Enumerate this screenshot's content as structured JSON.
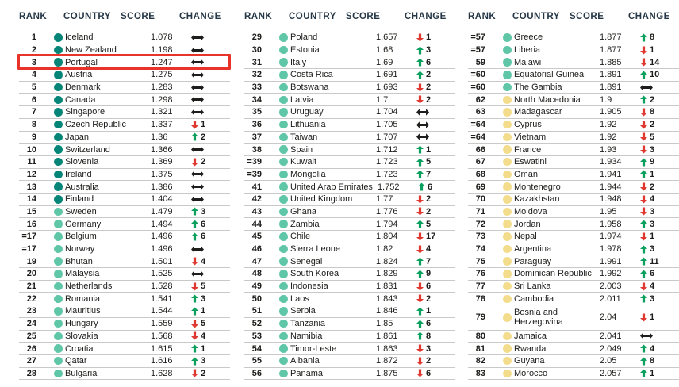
{
  "colors": {
    "header": "#253746",
    "text": "#1d1d1b",
    "separator": "#c9c9c9",
    "up": "#0ca05f",
    "down": "#de3831",
    "same": "#1d1d1b",
    "highlight": "#e8332a"
  },
  "table": {
    "headers": {
      "rank": "RANK",
      "country": "COUNTRY",
      "score": "SCORE",
      "change": "CHANGE"
    },
    "tier_colors": {
      "t1": "#048577",
      "t2": "#5fc6a7",
      "t3": "#f3dd8d"
    },
    "columns": [
      {
        "rows": [
          {
            "rank": "1",
            "country": "Iceland",
            "score": "1.078",
            "dir": "s",
            "n": "",
            "tier": "t1"
          },
          {
            "rank": "2",
            "country": "New Zealand",
            "score": "1.198",
            "dir": "s",
            "n": "",
            "tier": "t1"
          },
          {
            "rank": "3",
            "country": "Portugal",
            "score": "1.247",
            "dir": "s",
            "n": "",
            "tier": "t1",
            "highlight": true
          },
          {
            "rank": "4",
            "country": "Austria",
            "score": "1.275",
            "dir": "s",
            "n": "",
            "tier": "t1"
          },
          {
            "rank": "5",
            "country": "Denmark",
            "score": "1.283",
            "dir": "s",
            "n": "",
            "tier": "t1"
          },
          {
            "rank": "6",
            "country": "Canada",
            "score": "1.298",
            "dir": "s",
            "n": "",
            "tier": "t1"
          },
          {
            "rank": "7",
            "country": "Singapore",
            "score": "1.321",
            "dir": "s",
            "n": "",
            "tier": "t1"
          },
          {
            "rank": "8",
            "country": "Czech Republic",
            "score": "1.337",
            "dir": "d",
            "n": "1",
            "tier": "t1"
          },
          {
            "rank": "9",
            "country": "Japan",
            "score": "1.36",
            "dir": "u",
            "n": "2",
            "tier": "t1"
          },
          {
            "rank": "10",
            "country": "Switzerland",
            "score": "1.366",
            "dir": "s",
            "n": "",
            "tier": "t1"
          },
          {
            "rank": "11",
            "country": "Slovenia",
            "score": "1.369",
            "dir": "d",
            "n": "2",
            "tier": "t1"
          },
          {
            "rank": "12",
            "country": "Ireland",
            "score": "1.375",
            "dir": "s",
            "n": "",
            "tier": "t1"
          },
          {
            "rank": "13",
            "country": "Australia",
            "score": "1.386",
            "dir": "s",
            "n": "",
            "tier": "t1"
          },
          {
            "rank": "14",
            "country": "Finland",
            "score": "1.404",
            "dir": "s",
            "n": "",
            "tier": "t1"
          },
          {
            "rank": "15",
            "country": "Sweden",
            "score": "1.479",
            "dir": "u",
            "n": "3",
            "tier": "t2"
          },
          {
            "rank": "16",
            "country": "Germany",
            "score": "1.494",
            "dir": "u",
            "n": "6",
            "tier": "t2"
          },
          {
            "rank": "=17",
            "country": "Belgium",
            "score": "1.496",
            "dir": "u",
            "n": "6",
            "tier": "t2"
          },
          {
            "rank": "=17",
            "country": "Norway",
            "score": "1.496",
            "dir": "s",
            "n": "",
            "tier": "t2"
          },
          {
            "rank": "19",
            "country": "Bhutan",
            "score": "1.501",
            "dir": "d",
            "n": "4",
            "tier": "t2"
          },
          {
            "rank": "20",
            "country": "Malaysia",
            "score": "1.525",
            "dir": "s",
            "n": "",
            "tier": "t2"
          },
          {
            "rank": "21",
            "country": "Netherlands",
            "score": "1.528",
            "dir": "d",
            "n": "5",
            "tier": "t2"
          },
          {
            "rank": "22",
            "country": "Romania",
            "score": "1.541",
            "dir": "u",
            "n": "3",
            "tier": "t2"
          },
          {
            "rank": "23",
            "country": "Mauritius",
            "score": "1.544",
            "dir": "u",
            "n": "1",
            "tier": "t2"
          },
          {
            "rank": "24",
            "country": "Hungary",
            "score": "1.559",
            "dir": "d",
            "n": "5",
            "tier": "t2"
          },
          {
            "rank": "25",
            "country": "Slovakia",
            "score": "1.568",
            "dir": "d",
            "n": "4",
            "tier": "t2"
          },
          {
            "rank": "26",
            "country": "Croatia",
            "score": "1.615",
            "dir": "u",
            "n": "1",
            "tier": "t2"
          },
          {
            "rank": "27",
            "country": "Qatar",
            "score": "1.616",
            "dir": "u",
            "n": "3",
            "tier": "t2"
          },
          {
            "rank": "28",
            "country": "Bulgaria",
            "score": "1.628",
            "dir": "d",
            "n": "2",
            "tier": "t2"
          }
        ]
      },
      {
        "rows": [
          {
            "rank": "29",
            "country": "Poland",
            "score": "1.657",
            "dir": "d",
            "n": "1",
            "tier": "t2"
          },
          {
            "rank": "30",
            "country": "Estonia",
            "score": "1.68",
            "dir": "u",
            "n": "3",
            "tier": "t2"
          },
          {
            "rank": "31",
            "country": "Italy",
            "score": "1.69",
            "dir": "u",
            "n": "6",
            "tier": "t2"
          },
          {
            "rank": "32",
            "country": "Costa Rica",
            "score": "1.691",
            "dir": "u",
            "n": "2",
            "tier": "t2"
          },
          {
            "rank": "33",
            "country": "Botswana",
            "score": "1.693",
            "dir": "d",
            "n": "2",
            "tier": "t2"
          },
          {
            "rank": "34",
            "country": "Latvia",
            "score": "1.7",
            "dir": "d",
            "n": "2",
            "tier": "t2"
          },
          {
            "rank": "35",
            "country": "Uruguay",
            "score": "1.704",
            "dir": "s",
            "n": "",
            "tier": "t2"
          },
          {
            "rank": "36",
            "country": "Lithuania",
            "score": "1.705",
            "dir": "s",
            "n": "",
            "tier": "t2"
          },
          {
            "rank": "37",
            "country": "Taiwan",
            "score": "1.707",
            "dir": "s",
            "n": "",
            "tier": "t2"
          },
          {
            "rank": "38",
            "country": "Spain",
            "score": "1.712",
            "dir": "u",
            "n": "1",
            "tier": "t2"
          },
          {
            "rank": "=39",
            "country": "Kuwait",
            "score": "1.723",
            "dir": "u",
            "n": "5",
            "tier": "t2"
          },
          {
            "rank": "=39",
            "country": "Mongolia",
            "score": "1.723",
            "dir": "u",
            "n": "7",
            "tier": "t2"
          },
          {
            "rank": "41",
            "country": "United Arab Emirates",
            "score": "1.752",
            "dir": "u",
            "n": "6",
            "tier": "t2"
          },
          {
            "rank": "42",
            "country": "United Kingdom",
            "score": "1.77",
            "dir": "d",
            "n": "2",
            "tier": "t2"
          },
          {
            "rank": "43",
            "country": "Ghana",
            "score": "1.776",
            "dir": "d",
            "n": "2",
            "tier": "t2"
          },
          {
            "rank": "44",
            "country": "Zambia",
            "score": "1.794",
            "dir": "u",
            "n": "5",
            "tier": "t2"
          },
          {
            "rank": "45",
            "country": "Chile",
            "score": "1.804",
            "dir": "d",
            "n": "17",
            "tier": "t2"
          },
          {
            "rank": "46",
            "country": "Sierra Leone",
            "score": "1.82",
            "dir": "d",
            "n": "4",
            "tier": "t2"
          },
          {
            "rank": "47",
            "country": "Senegal",
            "score": "1.824",
            "dir": "u",
            "n": "7",
            "tier": "t2"
          },
          {
            "rank": "48",
            "country": "South Korea",
            "score": "1.829",
            "dir": "u",
            "n": "9",
            "tier": "t2"
          },
          {
            "rank": "49",
            "country": "Indonesia",
            "score": "1.831",
            "dir": "d",
            "n": "6",
            "tier": "t2"
          },
          {
            "rank": "50",
            "country": "Laos",
            "score": "1.843",
            "dir": "d",
            "n": "2",
            "tier": "t2"
          },
          {
            "rank": "51",
            "country": "Serbia",
            "score": "1.846",
            "dir": "u",
            "n": "1",
            "tier": "t2"
          },
          {
            "rank": "52",
            "country": "Tanzania",
            "score": "1.85",
            "dir": "u",
            "n": "6",
            "tier": "t2"
          },
          {
            "rank": "53",
            "country": "Namibia",
            "score": "1.861",
            "dir": "u",
            "n": "8",
            "tier": "t2"
          },
          {
            "rank": "54",
            "country": "Timor-Leste",
            "score": "1.863",
            "dir": "d",
            "n": "3",
            "tier": "t2"
          },
          {
            "rank": "55",
            "country": "Albania",
            "score": "1.872",
            "dir": "d",
            "n": "2",
            "tier": "t2"
          },
          {
            "rank": "56",
            "country": "Panama",
            "score": "1.875",
            "dir": "d",
            "n": "6",
            "tier": "t2"
          }
        ]
      },
      {
        "rows": [
          {
            "rank": "=57",
            "country": "Greece",
            "score": "1.877",
            "dir": "u",
            "n": "8",
            "tier": "t2"
          },
          {
            "rank": "=57",
            "country": "Liberia",
            "score": "1.877",
            "dir": "d",
            "n": "1",
            "tier": "t2"
          },
          {
            "rank": "59",
            "country": "Malawi",
            "score": "1.885",
            "dir": "d",
            "n": "14",
            "tier": "t2"
          },
          {
            "rank": "=60",
            "country": "Equatorial Guinea",
            "score": "1.891",
            "dir": "u",
            "n": "10",
            "tier": "t2"
          },
          {
            "rank": "=60",
            "country": "The Gambia",
            "score": "1.891",
            "dir": "s",
            "n": "",
            "tier": "t2"
          },
          {
            "rank": "62",
            "country": "North Macedonia",
            "score": "1.9",
            "dir": "u",
            "n": "2",
            "tier": "t3"
          },
          {
            "rank": "63",
            "country": "Madagascar",
            "score": "1.905",
            "dir": "d",
            "n": "8",
            "tier": "t3"
          },
          {
            "rank": "=64",
            "country": "Cyprus",
            "score": "1.92",
            "dir": "d",
            "n": "2",
            "tier": "t3"
          },
          {
            "rank": "=64",
            "country": "Vietnam",
            "score": "1.92",
            "dir": "d",
            "n": "5",
            "tier": "t3"
          },
          {
            "rank": "66",
            "country": "France",
            "score": "1.93",
            "dir": "d",
            "n": "3",
            "tier": "t3"
          },
          {
            "rank": "67",
            "country": "Eswatini",
            "score": "1.934",
            "dir": "u",
            "n": "9",
            "tier": "t3"
          },
          {
            "rank": "68",
            "country": "Oman",
            "score": "1.941",
            "dir": "u",
            "n": "1",
            "tier": "t3"
          },
          {
            "rank": "69",
            "country": "Montenegro",
            "score": "1.944",
            "dir": "d",
            "n": "2",
            "tier": "t3"
          },
          {
            "rank": "70",
            "country": "Kazakhstan",
            "score": "1.948",
            "dir": "d",
            "n": "4",
            "tier": "t3"
          },
          {
            "rank": "71",
            "country": "Moldova",
            "score": "1.95",
            "dir": "d",
            "n": "3",
            "tier": "t3"
          },
          {
            "rank": "72",
            "country": "Jordan",
            "score": "1.958",
            "dir": "u",
            "n": "3",
            "tier": "t3"
          },
          {
            "rank": "73",
            "country": "Nepal",
            "score": "1.974",
            "dir": "d",
            "n": "1",
            "tier": "t3"
          },
          {
            "rank": "74",
            "country": "Argentina",
            "score": "1.978",
            "dir": "u",
            "n": "3",
            "tier": "t3"
          },
          {
            "rank": "75",
            "country": "Paraguay",
            "score": "1.991",
            "dir": "u",
            "n": "11",
            "tier": "t3"
          },
          {
            "rank": "76",
            "country": "Dominican Republic",
            "score": "1.992",
            "dir": "u",
            "n": "6",
            "tier": "t3"
          },
          {
            "rank": "77",
            "country": "Sri Lanka",
            "score": "2.003",
            "dir": "d",
            "n": "4",
            "tier": "t3"
          },
          {
            "rank": "78",
            "country": "Cambodia",
            "score": "2.011",
            "dir": "u",
            "n": "3",
            "tier": "t3"
          },
          {
            "rank": "79",
            "country": "Bosnia and Herzegovina",
            "score": "2.04",
            "dir": "d",
            "n": "1",
            "tier": "t3",
            "wrap": true
          },
          {
            "rank": "80",
            "country": "Jamaica",
            "score": "2.041",
            "dir": "s",
            "n": "",
            "tier": "t3"
          },
          {
            "rank": "81",
            "country": "Rwanda",
            "score": "2.049",
            "dir": "u",
            "n": "4",
            "tier": "t3"
          },
          {
            "rank": "82",
            "country": "Guyana",
            "score": "2.05",
            "dir": "u",
            "n": "8",
            "tier": "t3"
          },
          {
            "rank": "83",
            "country": "Morocco",
            "score": "2.057",
            "dir": "u",
            "n": "1",
            "tier": "t3"
          }
        ]
      }
    ]
  }
}
